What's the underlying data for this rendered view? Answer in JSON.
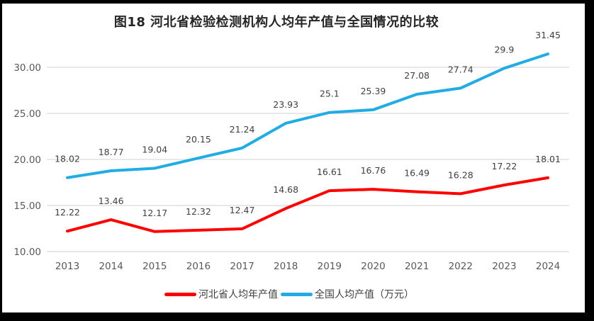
{
  "title": "图18 河北省检验检测机构人均年产值与全国情况的比较",
  "chart_data": {
    "type": "line",
    "title": "图18 河北省检验检测机构人均年产值与全国情况的比较",
    "x": [
      "2013",
      "2014",
      "2015",
      "2016",
      "2017",
      "2018",
      "2019",
      "2020",
      "2021",
      "2022",
      "2023",
      "2024"
    ],
    "series": [
      {
        "name": "河北省人均年产值",
        "color": "#fe0000",
        "values": [
          12.22,
          13.46,
          12.17,
          12.32,
          12.47,
          14.68,
          16.61,
          16.76,
          16.49,
          16.28,
          17.22,
          18.01
        ]
      },
      {
        "name": "全国人均产值（万元）",
        "color": "#22ace4",
        "values": [
          18.02,
          18.77,
          19.04,
          20.15,
          21.24,
          23.93,
          25.1,
          25.39,
          27.08,
          27.74,
          29.9,
          31.45
        ]
      }
    ],
    "xlabel": "",
    "ylabel": "",
    "ylim": [
      10,
      30
    ],
    "ytick_values": [
      10,
      15,
      20,
      25,
      30
    ],
    "ytick_labels": [
      "10.00",
      "15.00",
      "20.00",
      "25.00",
      "30.00"
    ],
    "grid": true,
    "data_labels": true,
    "legend_position": "bottom"
  },
  "style": {
    "frame_color": "#000000",
    "background_color": "#ffffff",
    "gridline_color": "#d9d9d9",
    "tick_label_color": "#595959",
    "data_label_color": "#404040",
    "title_color": "#262626",
    "legend_text_color": "#404040"
  }
}
